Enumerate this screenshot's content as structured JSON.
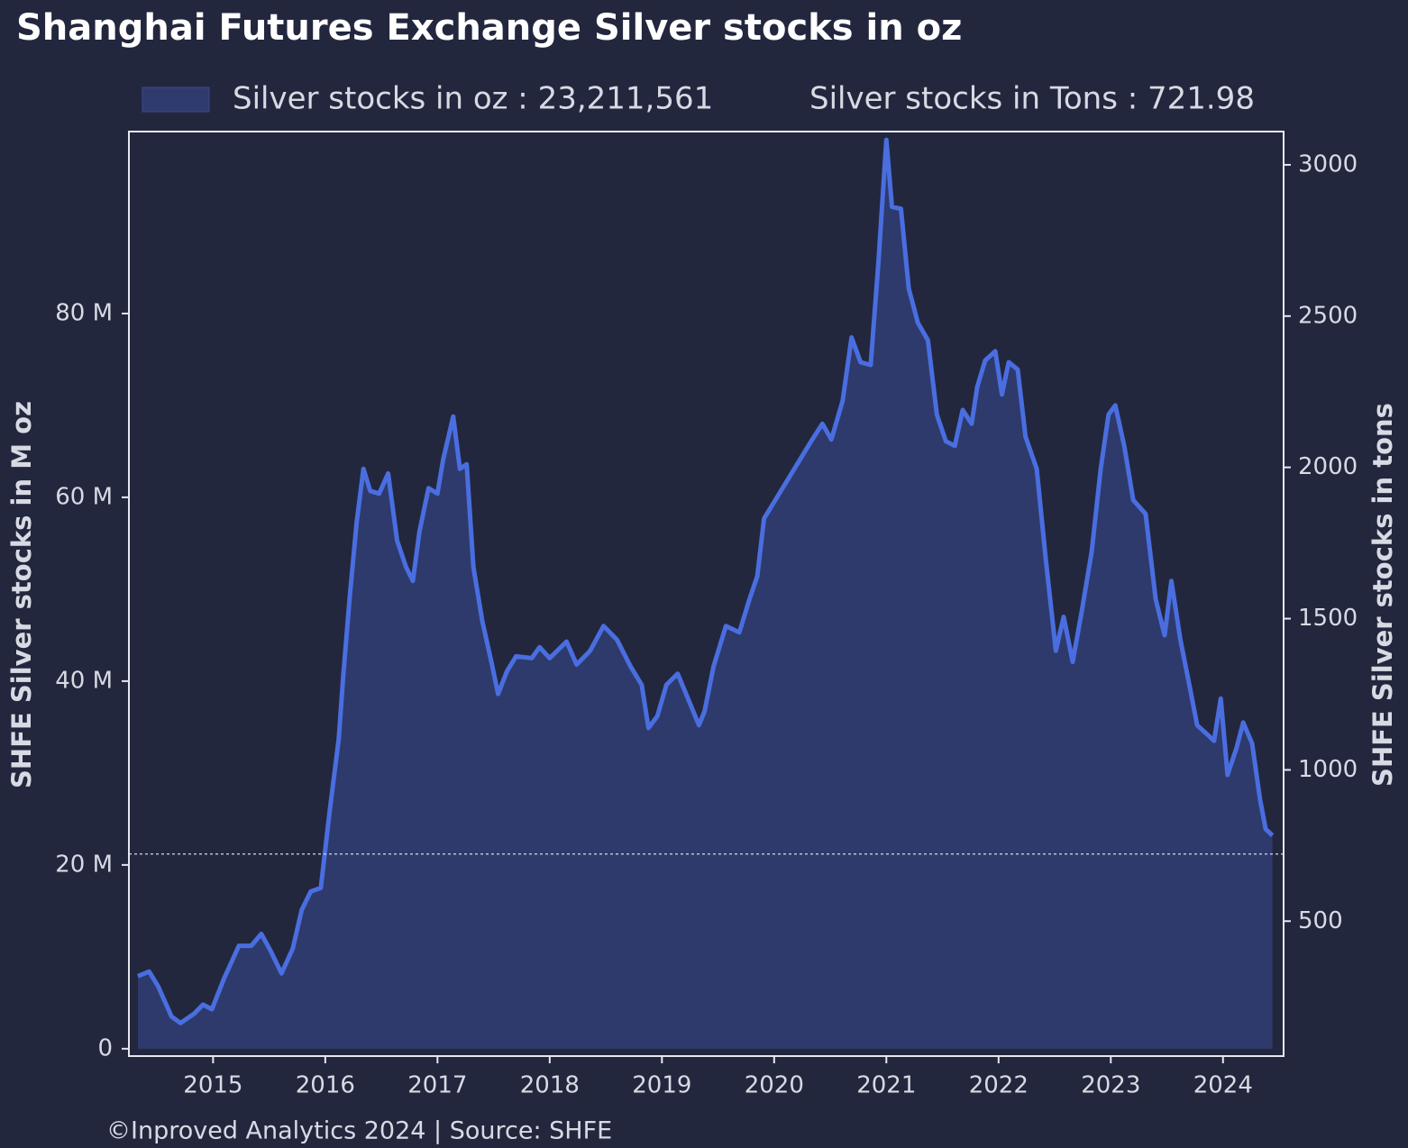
{
  "chart_data": {
    "type": "area",
    "title": "Shanghai Futures Exchange Silver stocks in oz",
    "ylabel": "SHFE Silver stocks in M oz",
    "y2label": "SHFE Silver stocks in tons",
    "footer": "©Inproved Analytics 2024 | Source: SHFE",
    "xlim": [
      2014.25,
      2024.54
    ],
    "xticks": [
      2015,
      2016,
      2017,
      2018,
      2019,
      2020,
      2021,
      2022,
      2023,
      2024
    ],
    "ylim": [
      -0.8,
      99.8
    ],
    "yticks": [
      0,
      {
        "value": 20,
        "label": "20 M"
      },
      {
        "value": 40,
        "label": "40 M"
      },
      {
        "value": 60,
        "label": "60 M"
      },
      {
        "value": 80,
        "label": "80 M"
      }
    ],
    "y2lim": [
      54,
      3110
    ],
    "y2ticks": [
      500,
      1000,
      1500,
      2000,
      2500,
      3000
    ],
    "reference_line": {
      "value": 721.98,
      "axis": "y2",
      "label": "Silver stocks in Tons : 721.98"
    },
    "x": [
      2014.33,
      2014.43,
      2014.51,
      2014.63,
      2014.71,
      2014.83,
      2014.91,
      2014.99,
      2015.1,
      2015.23,
      2015.34,
      2015.43,
      2015.51,
      2015.61,
      2015.71,
      2015.79,
      2015.87,
      2015.96,
      2016.04,
      2016.12,
      2016.16,
      2016.22,
      2016.28,
      2016.34,
      2016.4,
      2016.48,
      2016.56,
      2016.64,
      2016.72,
      2016.78,
      2016.84,
      2016.92,
      2017.0,
      2017.05,
      2017.14,
      2017.2,
      2017.26,
      2017.32,
      2017.4,
      2017.48,
      2017.54,
      2017.62,
      2017.7,
      2017.84,
      2017.91,
      2018.0,
      2018.15,
      2018.24,
      2018.36,
      2018.48,
      2018.6,
      2018.72,
      2018.82,
      2018.88,
      2018.96,
      2019.04,
      2019.14,
      2019.25,
      2019.33,
      2019.38,
      2019.46,
      2019.57,
      2019.69,
      2019.78,
      2019.85,
      2019.91,
      2020.01,
      2020.17,
      2020.33,
      2020.43,
      2020.51,
      2020.61,
      2020.69,
      2020.77,
      2020.86,
      2020.93,
      2021.0,
      2021.05,
      2021.13,
      2021.2,
      2021.28,
      2021.37,
      2021.45,
      2021.53,
      2021.61,
      2021.68,
      2021.76,
      2021.81,
      2021.88,
      2021.97,
      2022.03,
      2022.09,
      2022.17,
      2022.24,
      2022.34,
      2022.42,
      2022.51,
      2022.58,
      2022.66,
      2022.74,
      2022.83,
      2022.91,
      2022.98,
      2023.04,
      2023.12,
      2023.2,
      2023.31,
      2023.4,
      2023.48,
      2023.54,
      2023.62,
      2023.7,
      2023.77,
      2023.86,
      2023.92,
      2023.98,
      2024.04,
      2024.12,
      2024.18,
      2024.26,
      2024.33,
      2024.38,
      2024.44
    ],
    "series": [
      {
        "name": "Silver stocks in oz : 23,211,561",
        "color": "#4a6ee0",
        "fill": "#2f3b6e",
        "values": [
          7.9,
          8.4,
          6.8,
          3.5,
          2.8,
          3.8,
          4.8,
          4.3,
          7.7,
          11.2,
          11.2,
          12.5,
          10.7,
          8.2,
          10.9,
          15.1,
          17.1,
          17.5,
          25.9,
          33.7,
          40.6,
          49.4,
          57.3,
          63.1,
          60.7,
          60.4,
          62.6,
          55.3,
          52.4,
          50.9,
          56.3,
          61,
          60.4,
          64.1,
          68.8,
          63.1,
          63.6,
          52.4,
          46.5,
          42.1,
          38.6,
          41.1,
          42.7,
          42.5,
          43.7,
          42.5,
          44.3,
          41.8,
          43.3,
          46,
          44.5,
          41.6,
          39.6,
          34.9,
          36.2,
          39.6,
          40.8,
          37.6,
          35.2,
          36.7,
          41.6,
          46,
          45.3,
          48.9,
          51.4,
          57.7,
          59.7,
          62.9,
          66.1,
          68,
          66.3,
          70.5,
          77.4,
          74.7,
          74.4,
          85.7,
          98.9,
          91.6,
          91.4,
          82.7,
          79,
          77.1,
          69,
          66.1,
          65.6,
          69.5,
          68,
          72,
          74.9,
          75.9,
          71.2,
          74.7,
          73.9,
          66.6,
          63.1,
          53.3,
          43.3,
          47,
          42.1,
          47.5,
          54.1,
          63.1,
          69,
          70,
          65.6,
          59.7,
          58.2,
          48.9,
          45,
          50.9,
          44.5,
          39.6,
          35.2,
          34.2,
          33.5,
          38.1,
          29.8,
          32.7,
          35.5,
          33.2,
          27.1,
          23.9,
          23.2
        ]
      }
    ]
  }
}
